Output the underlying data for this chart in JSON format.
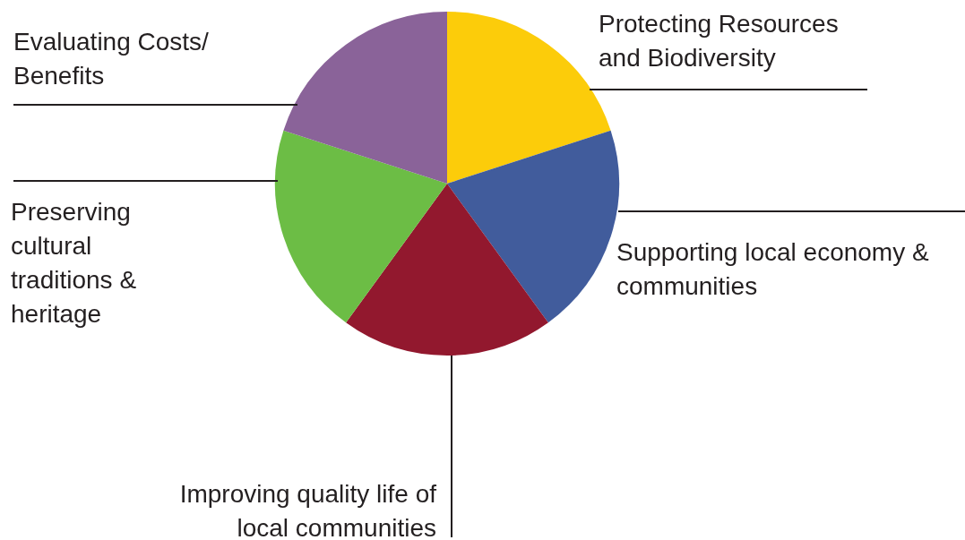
{
  "chart_data": {
    "type": "pie",
    "categories": [
      "Protecting Resources and Biodiversity",
      "Supporting local economy & communities",
      "Improving quality life of local communities",
      "Preserving cultural traditions & heritage",
      "Evaluating Costs/ Benefits"
    ],
    "values": [
      20,
      20,
      20,
      20,
      20
    ],
    "colors": [
      "#fccc0a",
      "#415c9c",
      "#92182e",
      "#6cbd45",
      "#8a6399"
    ],
    "legend": false
  }
}
